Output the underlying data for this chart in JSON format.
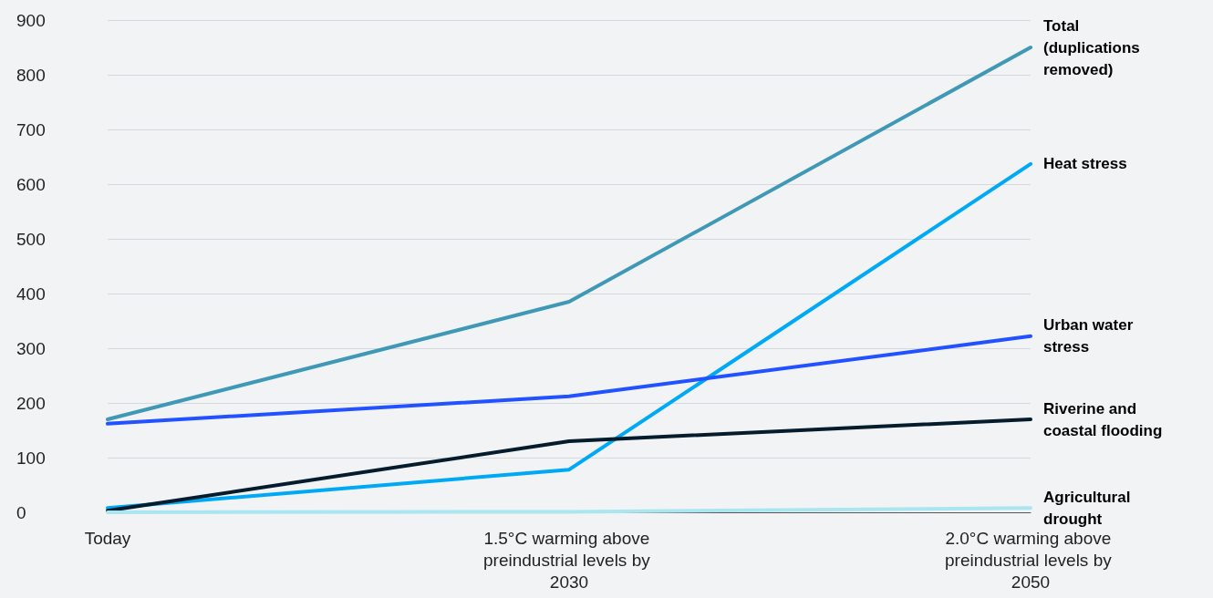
{
  "chart_data": {
    "type": "line",
    "categories": [
      "Today",
      "1.5°C warming above preindustrial levels by 2030",
      "2.0°C warming above preindustrial levels by 2050"
    ],
    "series": [
      {
        "name": "Total (duplications removed)",
        "color": "#3f98b5",
        "values": [
          170,
          385,
          850
        ]
      },
      {
        "name": "Heat stress",
        "color": "#00a9f4",
        "values": [
          8,
          78,
          637
        ]
      },
      {
        "name": "Urban water stress",
        "color": "#2251ff",
        "values": [
          162,
          212,
          322
        ]
      },
      {
        "name": "Riverine and coastal flooding",
        "color": "#051c2c",
        "values": [
          3,
          130,
          170
        ]
      },
      {
        "name": "Agricultural drought",
        "color": "#aae6f0",
        "values": [
          0,
          1,
          8
        ]
      }
    ],
    "ylim": [
      0,
      900
    ],
    "yticks": [
      0,
      100,
      200,
      300,
      400,
      500,
      600,
      700,
      800,
      900
    ],
    "grid": "y",
    "marker": "none",
    "line_style": "solid"
  }
}
